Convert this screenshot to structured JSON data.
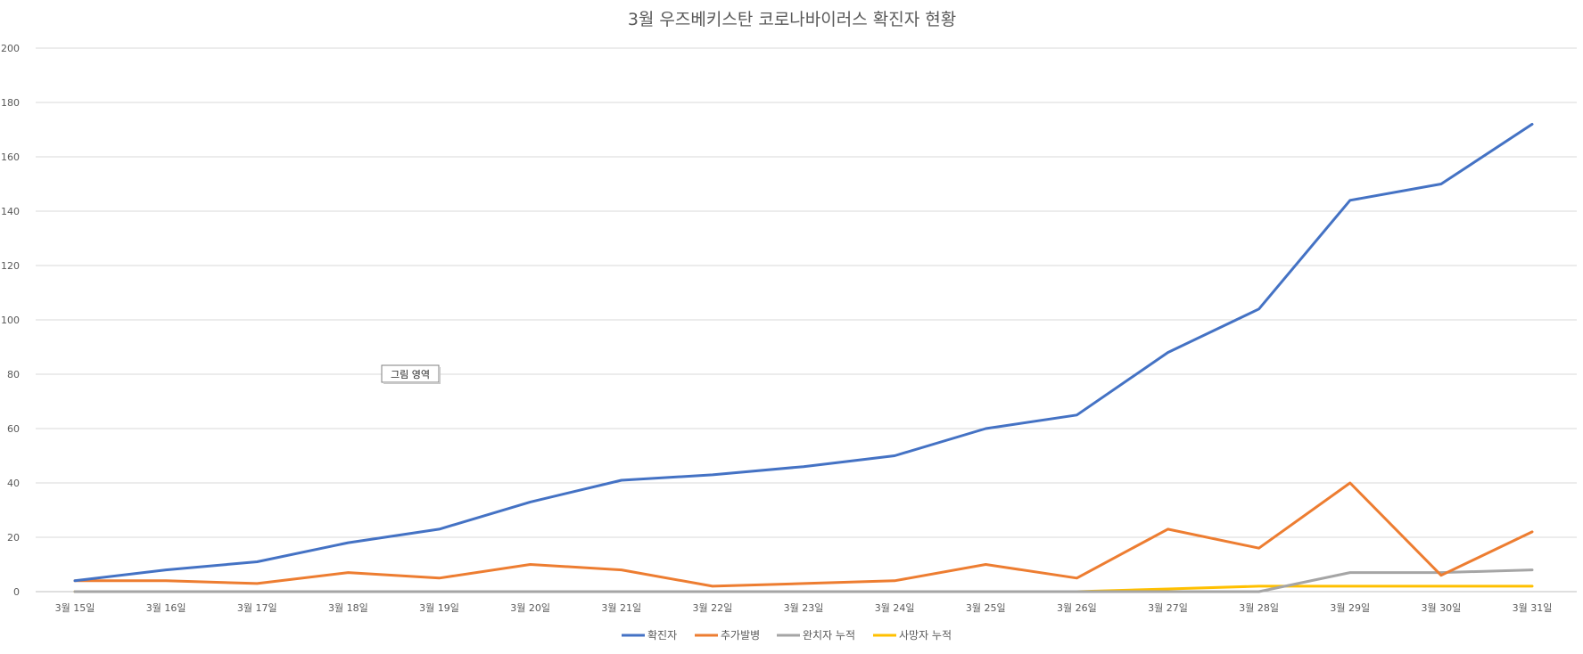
{
  "chart_data": {
    "type": "line",
    "title": "3월 우즈베키스탄 코로나바이러스 확진자 현황",
    "tooltip": "그림 영역",
    "categories": [
      "3월 15일",
      "3월 16일",
      "3월 17일",
      "3월 18일",
      "3월 19일",
      "3월 20일",
      "3월 21일",
      "3월 22일",
      "3월 23일",
      "3월 24일",
      "3월 25일",
      "3월 26일",
      "3월 27일",
      "3월 28일",
      "3월 29일",
      "3월 30일",
      "3월 31일"
    ],
    "ylim": [
      0,
      200
    ],
    "yticks": [
      0,
      20,
      40,
      60,
      80,
      100,
      120,
      140,
      160,
      180,
      200
    ],
    "grid": true,
    "legend_position": "bottom",
    "series": [
      {
        "name": "확진자",
        "color": "#4472C4",
        "values": [
          4,
          8,
          11,
          18,
          23,
          33,
          41,
          43,
          46,
          50,
          60,
          65,
          88,
          104,
          144,
          150,
          172
        ]
      },
      {
        "name": "추가발병",
        "color": "#ED7D31",
        "values": [
          4,
          4,
          3,
          7,
          5,
          10,
          8,
          2,
          3,
          4,
          10,
          5,
          23,
          16,
          40,
          6,
          22
        ]
      },
      {
        "name": "완치자 누적",
        "color": "#A5A5A5",
        "values": [
          0,
          0,
          0,
          0,
          0,
          0,
          0,
          0,
          0,
          0,
          0,
          0,
          0,
          0,
          7,
          7,
          8
        ]
      },
      {
        "name": "사망자 누적",
        "color": "#FFC000",
        "values": [
          0,
          0,
          0,
          0,
          0,
          0,
          0,
          0,
          0,
          0,
          0,
          0,
          1,
          2,
          2,
          2,
          2
        ]
      }
    ]
  }
}
